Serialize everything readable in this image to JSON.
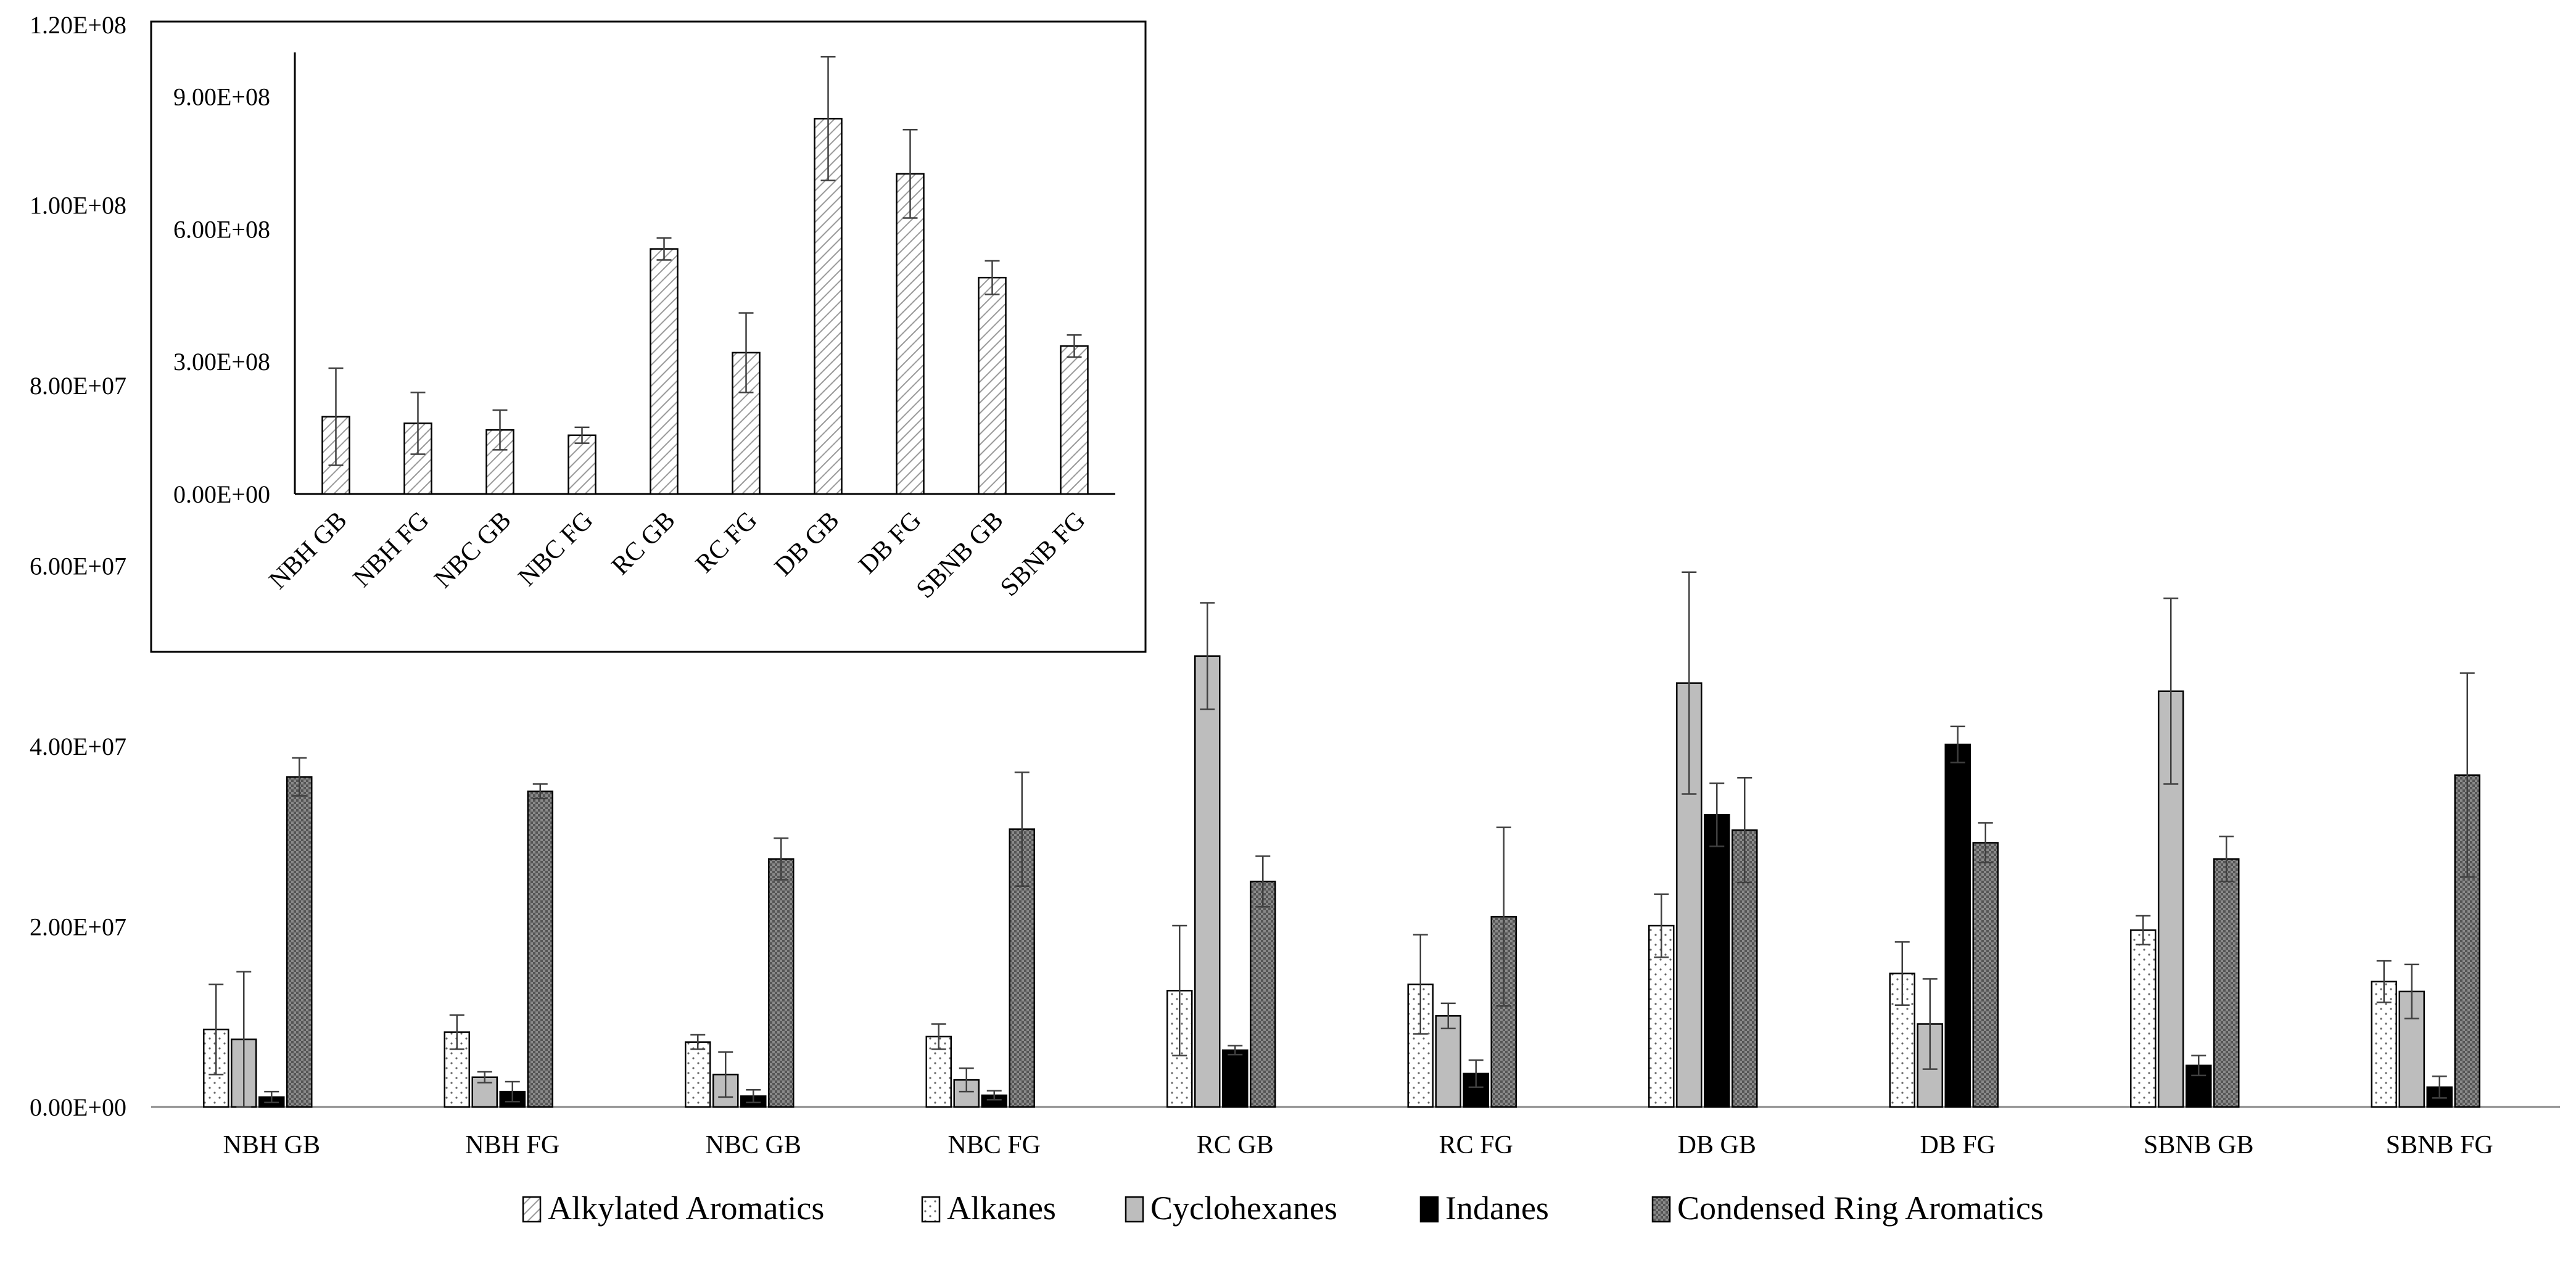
{
  "chart_data": [
    {
      "id": "main",
      "type": "bar",
      "categories": [
        "NBH GB",
        "NBH FG",
        "NBC GB",
        "NBC FG",
        "RC GB",
        "RC FG",
        "DB GB",
        "DB FG",
        "SBNB GB",
        "SBNB FG"
      ],
      "ylim": [
        0,
        120000000
      ],
      "yticks": [
        0,
        20000000,
        40000000,
        60000000,
        80000000,
        100000000,
        120000000
      ],
      "ytick_labels": [
        "0.00E+00",
        "2.00E+07",
        "4.00E+07",
        "6.00E+07",
        "8.00E+07",
        "1.00E+08",
        "1.20E+08"
      ],
      "series": [
        {
          "name": "Alkylated Aromatics",
          "pattern": "hatch",
          "values": [
            null,
            null,
            null,
            null,
            null,
            null,
            null,
            null,
            null,
            null
          ],
          "errors": [
            null,
            null,
            null,
            null,
            null,
            null,
            null,
            null,
            null,
            null
          ]
        },
        {
          "name": "Alkanes",
          "pattern": "dots",
          "values": [
            8600000,
            8300000,
            7200000,
            7800000,
            12900000,
            13600000,
            20100000,
            14800000,
            19600000,
            13900000
          ],
          "errors": [
            5000000,
            1900000,
            800000,
            1400000,
            7200000,
            5500000,
            3500000,
            3500000,
            1600000,
            2300000
          ]
        },
        {
          "name": "Cyclohexanes",
          "pattern": "gray",
          "values": [
            7500000,
            3300000,
            3600000,
            3000000,
            50000000,
            10100000,
            47000000,
            9200000,
            46100000,
            12800000
          ],
          "errors": [
            7500000,
            600000,
            2500000,
            1300000,
            5900000,
            1400000,
            12300000,
            5000000,
            10300000,
            3000000
          ]
        },
        {
          "name": "Indanes",
          "pattern": "black",
          "values": [
            1100000,
            1700000,
            1200000,
            1300000,
            6300000,
            3700000,
            32400000,
            40200000,
            4600000,
            2200000
          ],
          "errors": [
            600000,
            1100000,
            700000,
            500000,
            500000,
            1500000,
            3500000,
            2000000,
            1100000,
            1200000
          ]
        },
        {
          "name": "Condensed Ring Aromatics",
          "pattern": "crosshatch",
          "values": [
            36600000,
            35000000,
            27500000,
            30800000,
            25000000,
            21100000,
            30700000,
            29300000,
            27500000,
            36800000
          ],
          "errors": [
            2100000,
            800000,
            2300000,
            6300000,
            2800000,
            9900000,
            5800000,
            2200000,
            2500000,
            11300000
          ]
        }
      ],
      "legend": {
        "position": "bottom",
        "entries": [
          "Alkylated Aromatics",
          "Alkanes",
          "Cyclohexanes",
          "Indanes",
          "Condensed Ring Aromatics"
        ]
      }
    },
    {
      "id": "inset",
      "type": "bar",
      "categories": [
        "NBH GB",
        "NBH FG",
        "NBC GB",
        "NBC FG",
        "RC GB",
        "RC FG",
        "DB GB",
        "DB FG",
        "SBNB GB",
        "SBNB FG"
      ],
      "ylim": [
        0,
        1000000000
      ],
      "yticks": [
        0,
        300000000,
        600000000,
        900000000
      ],
      "ytick_labels": [
        "0.00E+00",
        "3.00E+08",
        "6.00E+08",
        "9.00E+08"
      ],
      "series": [
        {
          "name": "Alkylated Aromatics",
          "pattern": "hatch",
          "values": [
            175000000,
            160000000,
            145000000,
            133000000,
            555000000,
            320000000,
            850000000,
            725000000,
            490000000,
            335000000
          ],
          "errors": [
            110000000,
            70000000,
            45000000,
            18000000,
            25000000,
            90000000,
            140000000,
            100000000,
            38000000,
            25000000
          ]
        }
      ]
    }
  ]
}
